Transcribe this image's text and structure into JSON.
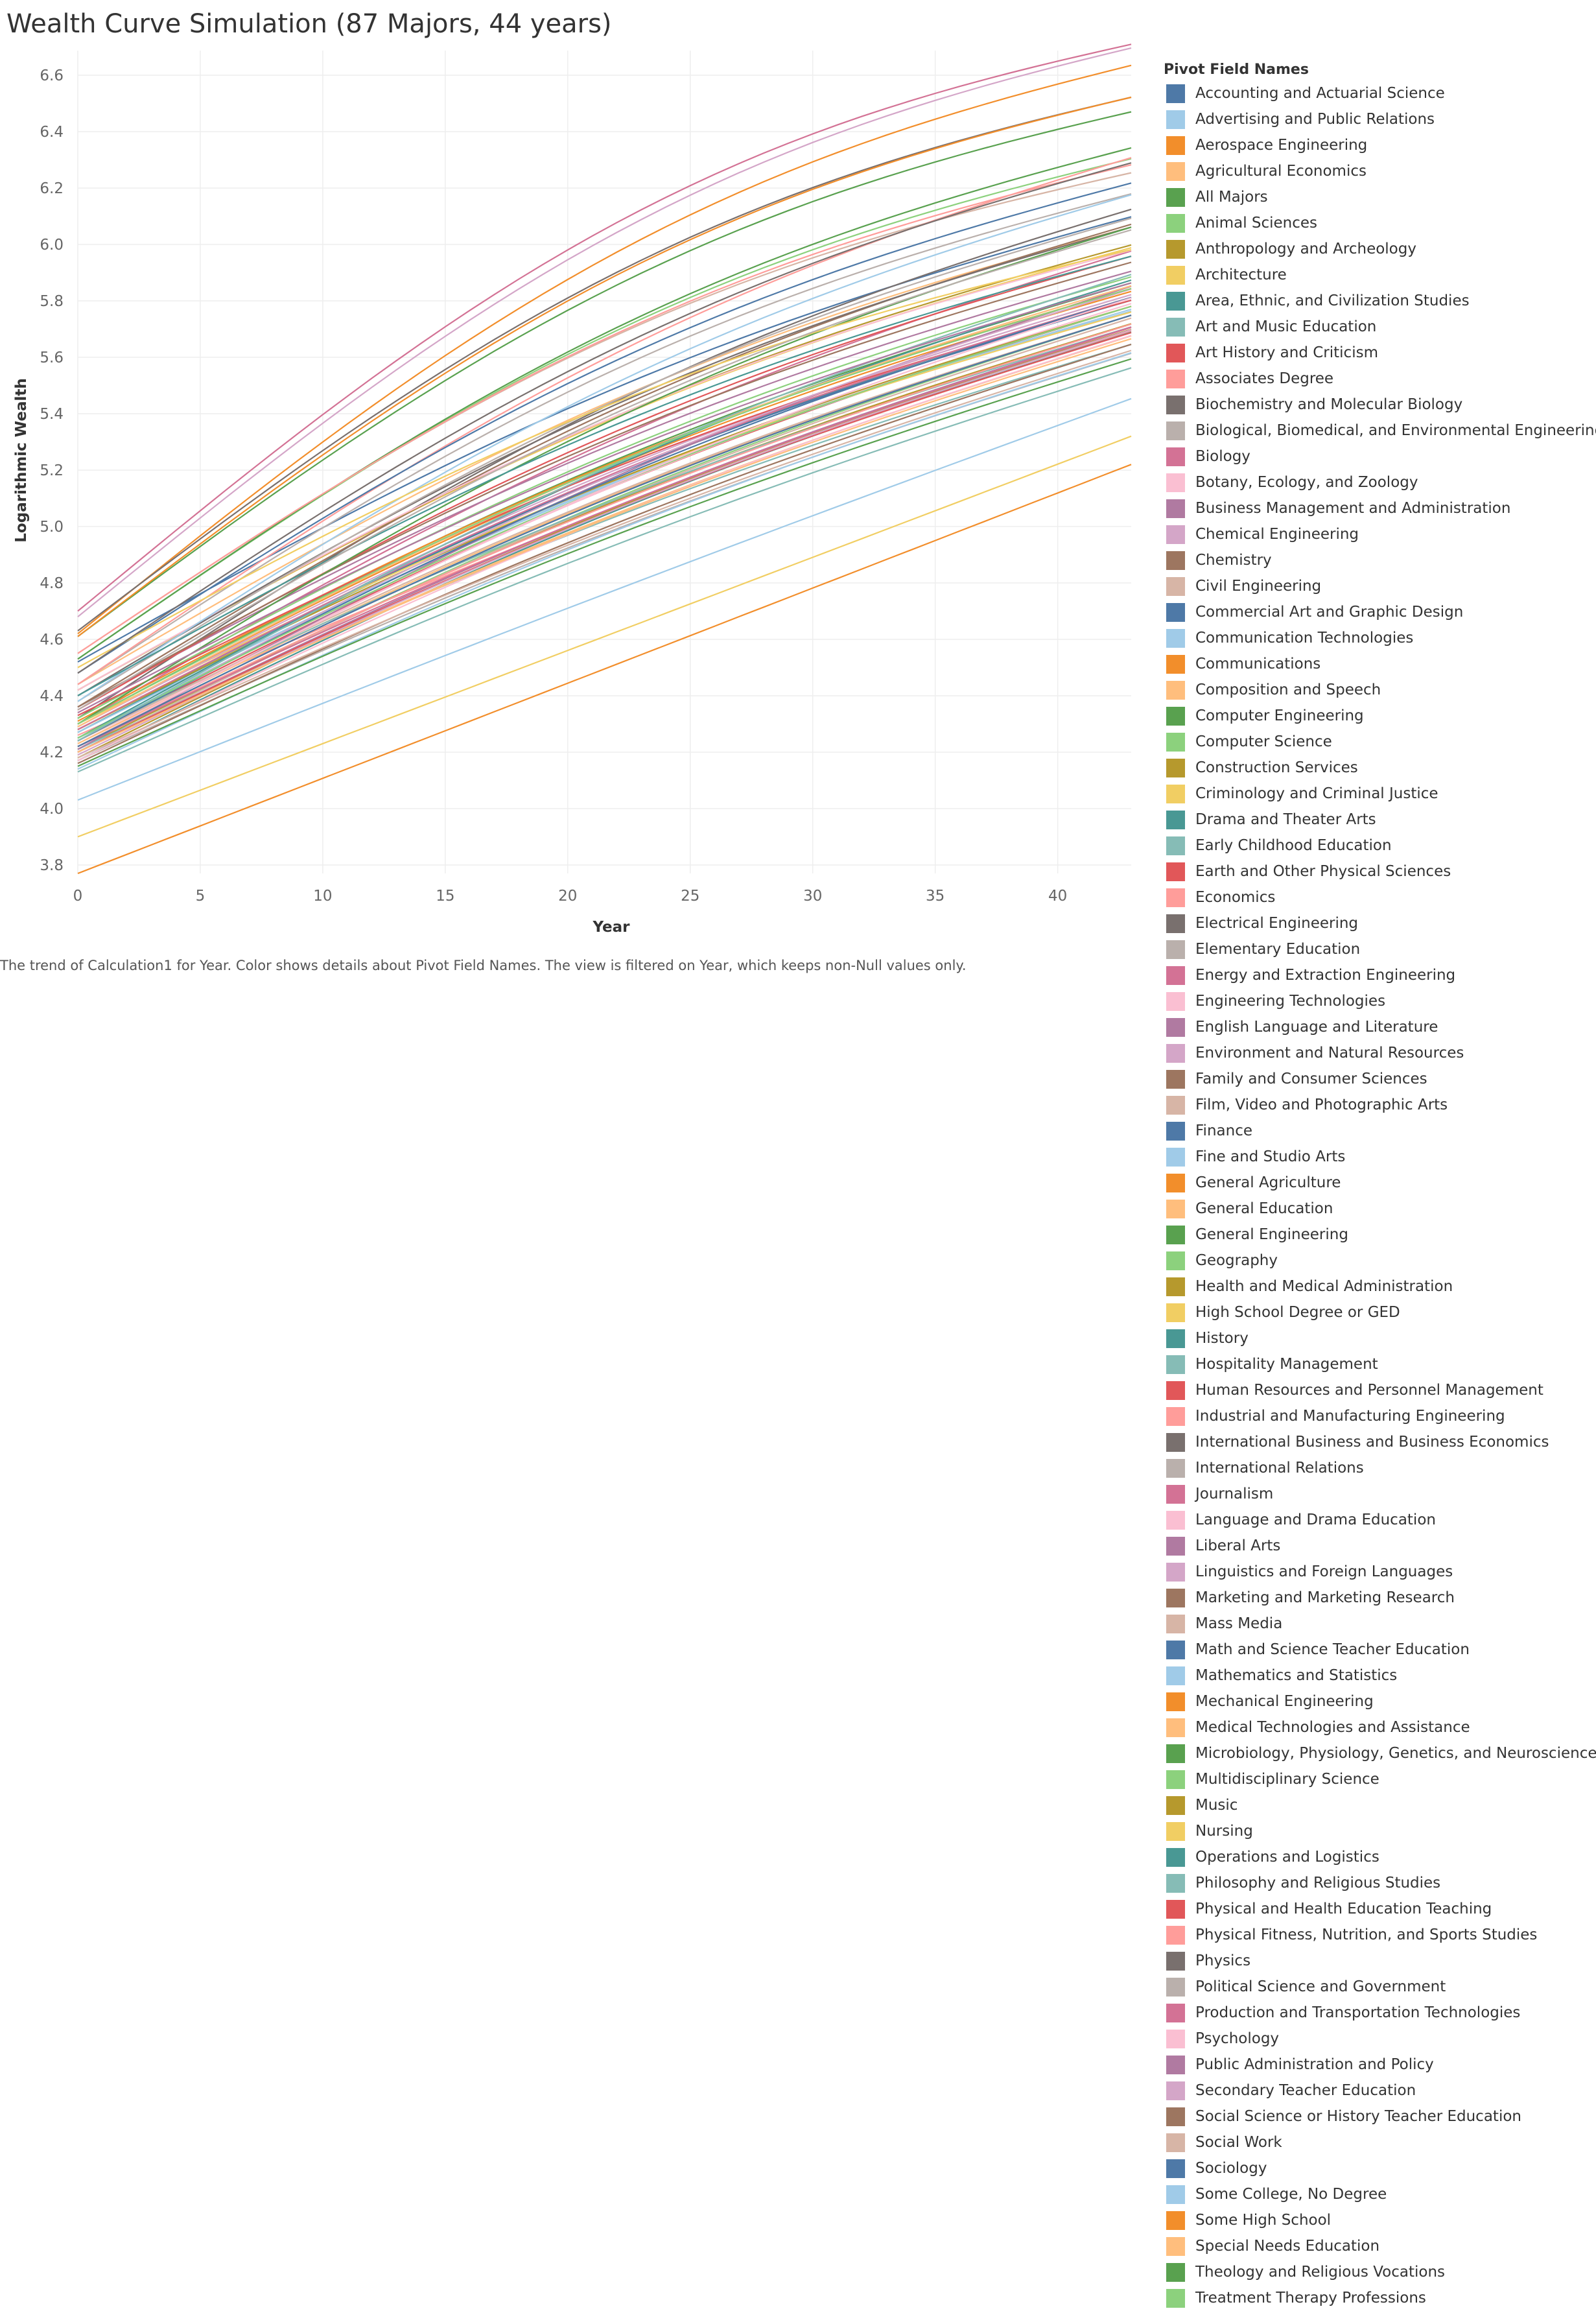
{
  "chart_data": {
    "type": "line",
    "title": "Wealth Curve Simulation (87 Majors, 44 years)",
    "xlabel": "Year",
    "ylabel": "Logarithmic Wealth",
    "caption": "The trend of Calculation1 for Year.  Color shows details about Pivot Field Names. The view is filtered on Year, which keeps non-Null values only.",
    "xlim": [
      0,
      43
    ],
    "ylim": [
      3.77,
      6.66
    ],
    "x_ticks": [
      "0",
      "5",
      "10",
      "15",
      "20",
      "25",
      "30",
      "35",
      "40"
    ],
    "y_ticks": [
      "3.8",
      "4.0",
      "4.2",
      "4.4",
      "4.6",
      "4.8",
      "5.0",
      "5.2",
      "5.4",
      "5.6",
      "5.8",
      "6.0",
      "6.2",
      "6.4",
      "6.6"
    ],
    "grid": true,
    "legend_position": "right",
    "legend_title": "Pivot Field Names",
    "palette": [
      "#4e79a7",
      "#a0cbe8",
      "#f28e2b",
      "#ffbe7d",
      "#59a14f",
      "#8cd17d",
      "#b6992d",
      "#f1ce63",
      "#499894",
      "#86bcb6",
      "#e15759",
      "#ff9d9a",
      "#79706e",
      "#bab0ac",
      "#d37295",
      "#fabfd2",
      "#b07aa1",
      "#d4a6c8",
      "#9d7660",
      "#d7b5a6"
    ],
    "series": [
      {
        "name": "Accounting and Actuarial Science",
        "y0": 4.52,
        "y43": 6.07,
        "bend": 0.18
      },
      {
        "name": "Advertising and Public Relations",
        "y0": 4.25,
        "y43": 5.74,
        "bend": 0.15
      },
      {
        "name": "Aerospace Engineering",
        "y0": 4.62,
        "y43": 6.58,
        "bend": 0.35
      },
      {
        "name": "Agricultural Economics",
        "y0": 4.44,
        "y43": 6.03,
        "bend": 0.2
      },
      {
        "name": "All Majors",
        "y0": 4.3,
        "y43": 5.84,
        "bend": 0.15
      },
      {
        "name": "Animal Sciences",
        "y0": 4.2,
        "y43": 5.73,
        "bend": 0.12
      },
      {
        "name": "Anthropology and Archeology",
        "y0": 4.21,
        "y43": 5.7,
        "bend": 0.12
      },
      {
        "name": "Architecture",
        "y0": 4.42,
        "y43": 5.96,
        "bend": 0.18
      },
      {
        "name": "Area, Ethnic, and Civilization Studies",
        "y0": 4.27,
        "y43": 5.79,
        "bend": 0.14
      },
      {
        "name": "Art and Music Education",
        "y0": 4.21,
        "y43": 5.63,
        "bend": 0.1
      },
      {
        "name": "Art History and Criticism",
        "y0": 4.24,
        "y43": 5.76,
        "bend": 0.13
      },
      {
        "name": "Associates Degree",
        "y0": 4.26,
        "y43": 5.68,
        "bend": 0.08
      },
      {
        "name": "Biochemistry and Molecular Biology",
        "y0": 4.32,
        "y43": 6.09,
        "bend": 0.22
      },
      {
        "name": "Biological, Biomedical, and Environmental Engineering",
        "y0": 4.44,
        "y43": 6.14,
        "bend": 0.25
      },
      {
        "name": "Biology",
        "y0": 4.3,
        "y43": 5.95,
        "bend": 0.17
      },
      {
        "name": "Botany, Ecology, and Zoology",
        "y0": 4.23,
        "y43": 5.77,
        "bend": 0.13
      },
      {
        "name": "Business Management and Administration",
        "y0": 4.36,
        "y43": 5.88,
        "bend": 0.16
      },
      {
        "name": "Chemical Engineering",
        "y0": 4.68,
        "y43": 6.64,
        "bend": 0.36
      },
      {
        "name": "Chemistry",
        "y0": 4.36,
        "y43": 6.04,
        "bend": 0.2
      },
      {
        "name": "Civil Engineering",
        "y0": 4.55,
        "y43": 6.21,
        "bend": 0.28
      },
      {
        "name": "Commercial Art and Graphic Design",
        "y0": 4.28,
        "y43": 5.78,
        "bend": 0.14
      },
      {
        "name": "Communication Technologies",
        "y0": 4.27,
        "y43": 5.75,
        "bend": 0.13
      },
      {
        "name": "Communications",
        "y0": 4.29,
        "y43": 5.81,
        "bend": 0.15
      },
      {
        "name": "Composition and Speech",
        "y0": 4.23,
        "y43": 5.73,
        "bend": 0.12
      },
      {
        "name": "Computer Engineering",
        "y0": 4.61,
        "y43": 6.42,
        "bend": 0.32
      },
      {
        "name": "Computer Science",
        "y0": 4.53,
        "y43": 6.26,
        "bend": 0.28
      },
      {
        "name": "Construction Services",
        "y0": 4.42,
        "y43": 5.97,
        "bend": 0.18
      },
      {
        "name": "Criminology and Criminal Justice",
        "y0": 4.3,
        "y43": 5.74,
        "bend": 0.13
      },
      {
        "name": "Drama and Theater Arts",
        "y0": 4.17,
        "y43": 5.67,
        "bend": 0.12
      },
      {
        "name": "Early Childhood Education",
        "y0": 4.13,
        "y43": 5.55,
        "bend": 0.08
      },
      {
        "name": "Earth and Other Physical Sciences",
        "y0": 4.35,
        "y43": 5.93,
        "bend": 0.18
      },
      {
        "name": "Economics",
        "y0": 4.44,
        "y43": 6.27,
        "bend": 0.24
      },
      {
        "name": "Electrical Engineering",
        "y0": 4.63,
        "y43": 6.47,
        "bend": 0.33
      },
      {
        "name": "Elementary Education",
        "y0": 4.17,
        "y43": 5.6,
        "bend": 0.09
      },
      {
        "name": "Energy and Extraction Engineering",
        "y0": 4.7,
        "y43": 6.65,
        "bend": 0.38
      },
      {
        "name": "Engineering Technologies",
        "y0": 4.42,
        "y43": 5.95,
        "bend": 0.19
      },
      {
        "name": "English Language and Literature",
        "y0": 4.21,
        "y43": 5.83,
        "bend": 0.14
      },
      {
        "name": "Environment and Natural Resources",
        "y0": 4.29,
        "y43": 5.8,
        "bend": 0.14
      },
      {
        "name": "Family and Consumer Sciences",
        "y0": 4.16,
        "y43": 5.63,
        "bend": 0.1
      },
      {
        "name": "Film, Video and Photographic Arts",
        "y0": 4.2,
        "y43": 5.72,
        "bend": 0.12
      },
      {
        "name": "Finance",
        "y0": 4.48,
        "y43": 6.18,
        "bend": 0.24
      },
      {
        "name": "Fine and Studio Arts",
        "y0": 4.14,
        "y43": 5.6,
        "bend": 0.1
      },
      {
        "name": "General Agriculture",
        "y0": 4.31,
        "y43": 5.82,
        "bend": 0.15
      },
      {
        "name": "General Education",
        "y0": 4.2,
        "y43": 5.66,
        "bend": 0.1
      },
      {
        "name": "General Engineering",
        "y0": 4.53,
        "y43": 6.3,
        "bend": 0.27
      },
      {
        "name": "Geography",
        "y0": 4.32,
        "y43": 5.86,
        "bend": 0.16
      },
      {
        "name": "Health and Medical Administration",
        "y0": 4.28,
        "y43": 5.76,
        "bend": 0.13
      },
      {
        "name": "High School Degree or GED",
        "y0": 3.9,
        "y43": 5.32,
        "bend": 0.0
      },
      {
        "name": "History",
        "y0": 4.25,
        "y43": 5.85,
        "bend": 0.15
      },
      {
        "name": "Hospitality Management",
        "y0": 4.25,
        "y43": 5.69,
        "bend": 0.11
      },
      {
        "name": "Human Resources and Personnel Management",
        "y0": 4.33,
        "y43": 5.78,
        "bend": 0.14
      },
      {
        "name": "Industrial and Manufacturing Engineering",
        "y0": 4.55,
        "y43": 6.24,
        "bend": 0.27
      },
      {
        "name": "International Business and Business Economics",
        "y0": 4.4,
        "y43": 6.03,
        "bend": 0.2
      },
      {
        "name": "International Relations",
        "y0": 4.38,
        "y43": 6.06,
        "bend": 0.21
      },
      {
        "name": "Journalism",
        "y0": 4.28,
        "y43": 5.79,
        "bend": 0.14
      },
      {
        "name": "Language and Drama Education",
        "y0": 4.17,
        "y43": 5.66,
        "bend": 0.11
      },
      {
        "name": "Liberal Arts",
        "y0": 4.2,
        "y43": 5.69,
        "bend": 0.11
      },
      {
        "name": "Linguistics and Foreign Languages",
        "y0": 4.24,
        "y43": 5.82,
        "bend": 0.14
      },
      {
        "name": "Marketing and Marketing Research",
        "y0": 4.36,
        "y43": 5.91,
        "bend": 0.17
      },
      {
        "name": "Mass Media",
        "y0": 4.24,
        "y43": 5.73,
        "bend": 0.12
      },
      {
        "name": "Math and Science Teacher Education",
        "y0": 4.24,
        "y43": 5.79,
        "bend": 0.14
      },
      {
        "name": "Mathematics and Statistics",
        "y0": 4.38,
        "y43": 6.14,
        "bend": 0.23
      },
      {
        "name": "Mechanical Engineering",
        "y0": 4.61,
        "y43": 6.47,
        "bend": 0.33
      },
      {
        "name": "Medical Technologies and Assistance",
        "y0": 4.29,
        "y43": 5.83,
        "bend": 0.15
      },
      {
        "name": "Microbiology, Physiology, Genetics, and Neuroscience",
        "y0": 4.3,
        "y43": 6.03,
        "bend": 0.2
      },
      {
        "name": "Multidisciplinary Science",
        "y0": 4.25,
        "y43": 5.76,
        "bend": 0.13
      },
      {
        "name": "Music",
        "y0": 4.18,
        "y43": 5.68,
        "bend": 0.12
      },
      {
        "name": "Nursing",
        "y0": 4.5,
        "y43": 5.95,
        "bend": 0.2
      },
      {
        "name": "Operations and Logistics",
        "y0": 4.4,
        "y43": 5.93,
        "bend": 0.18
      },
      {
        "name": "Philosophy and Religious Studies",
        "y0": 4.24,
        "y43": 5.87,
        "bend": 0.15
      },
      {
        "name": "Physical and Health Education Teaching",
        "y0": 4.2,
        "y43": 5.67,
        "bend": 0.11
      },
      {
        "name": "Physical Fitness, Nutrition, and Sports Studies",
        "y0": 4.22,
        "y43": 5.7,
        "bend": 0.11
      },
      {
        "name": "Physics",
        "y0": 4.48,
        "y43": 6.25,
        "bend": 0.25
      },
      {
        "name": "Political Science and Government",
        "y0": 4.35,
        "y43": 6.02,
        "bend": 0.2
      },
      {
        "name": "Production and Transportation Technologies",
        "y0": 4.22,
        "y43": 5.69,
        "bend": 0.1
      },
      {
        "name": "Psychology",
        "y0": 4.22,
        "y43": 5.79,
        "bend": 0.13
      },
      {
        "name": "Public Administration and Policy",
        "y0": 4.34,
        "y43": 5.84,
        "bend": 0.15
      },
      {
        "name": "Secondary Teacher Education",
        "y0": 4.19,
        "y43": 5.68,
        "bend": 0.11
      },
      {
        "name": "Social Science or History Teacher Education",
        "y0": 4.22,
        "y43": 5.73,
        "bend": 0.12
      },
      {
        "name": "Social Work",
        "y0": 4.18,
        "y43": 5.61,
        "bend": 0.09
      },
      {
        "name": "Sociology",
        "y0": 4.22,
        "y43": 5.73,
        "bend": 0.12
      },
      {
        "name": "Some College, No Degree",
        "y0": 4.03,
        "y43": 5.45,
        "bend": 0.02
      },
      {
        "name": "Some High School",
        "y0": 3.77,
        "y43": 5.22,
        "bend": 0.0
      },
      {
        "name": "Special Needs Education",
        "y0": 4.2,
        "y43": 5.65,
        "bend": 0.1
      },
      {
        "name": "Theology and Religious Vocations",
        "y0": 4.15,
        "y43": 5.58,
        "bend": 0.09
      },
      {
        "name": "Treatment Therapy Professions",
        "y0": 4.3,
        "y43": 5.82,
        "bend": 0.15
      }
    ]
  }
}
